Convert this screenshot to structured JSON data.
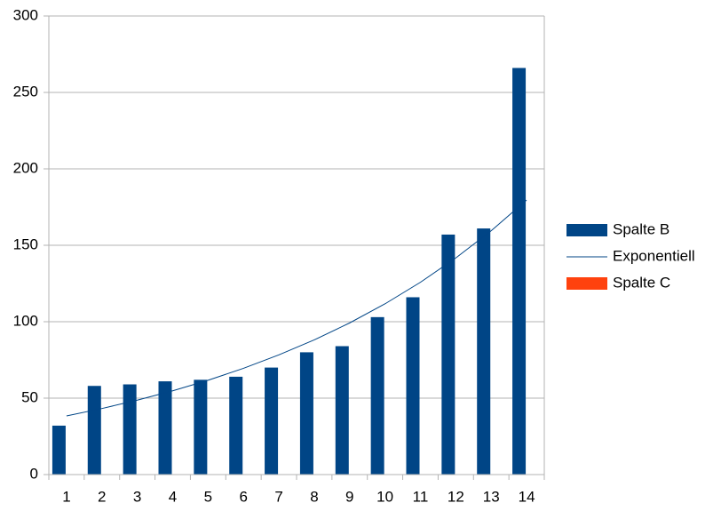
{
  "chart_data": {
    "type": "bar",
    "categories": [
      "1",
      "2",
      "3",
      "4",
      "5",
      "6",
      "7",
      "8",
      "9",
      "10",
      "11",
      "12",
      "13",
      "14"
    ],
    "series": [
      {
        "name": "Spalte B",
        "color": "#004586",
        "values": [
          32,
          58,
          59,
          61,
          62,
          64,
          70,
          80,
          84,
          103,
          116,
          157,
          161,
          266
        ]
      },
      {
        "name": "Exponentiell",
        "color": "#004586",
        "type": "line",
        "values": [
          38.4,
          43.2,
          48.7,
          54.8,
          61.7,
          69.5,
          78.3,
          88.1,
          99.2,
          111.7,
          125.8,
          141.7,
          159.5,
          179.6
        ]
      },
      {
        "name": "Spalte C",
        "color": "#ff420e",
        "values": [
          null,
          null,
          null,
          null,
          null,
          null,
          null,
          null,
          null,
          null,
          null,
          null,
          null,
          null
        ]
      }
    ],
    "ylim": [
      0,
      300
    ],
    "yticks": [
      0,
      50,
      100,
      150,
      200,
      250,
      300
    ],
    "grid": true,
    "legend": "right"
  }
}
